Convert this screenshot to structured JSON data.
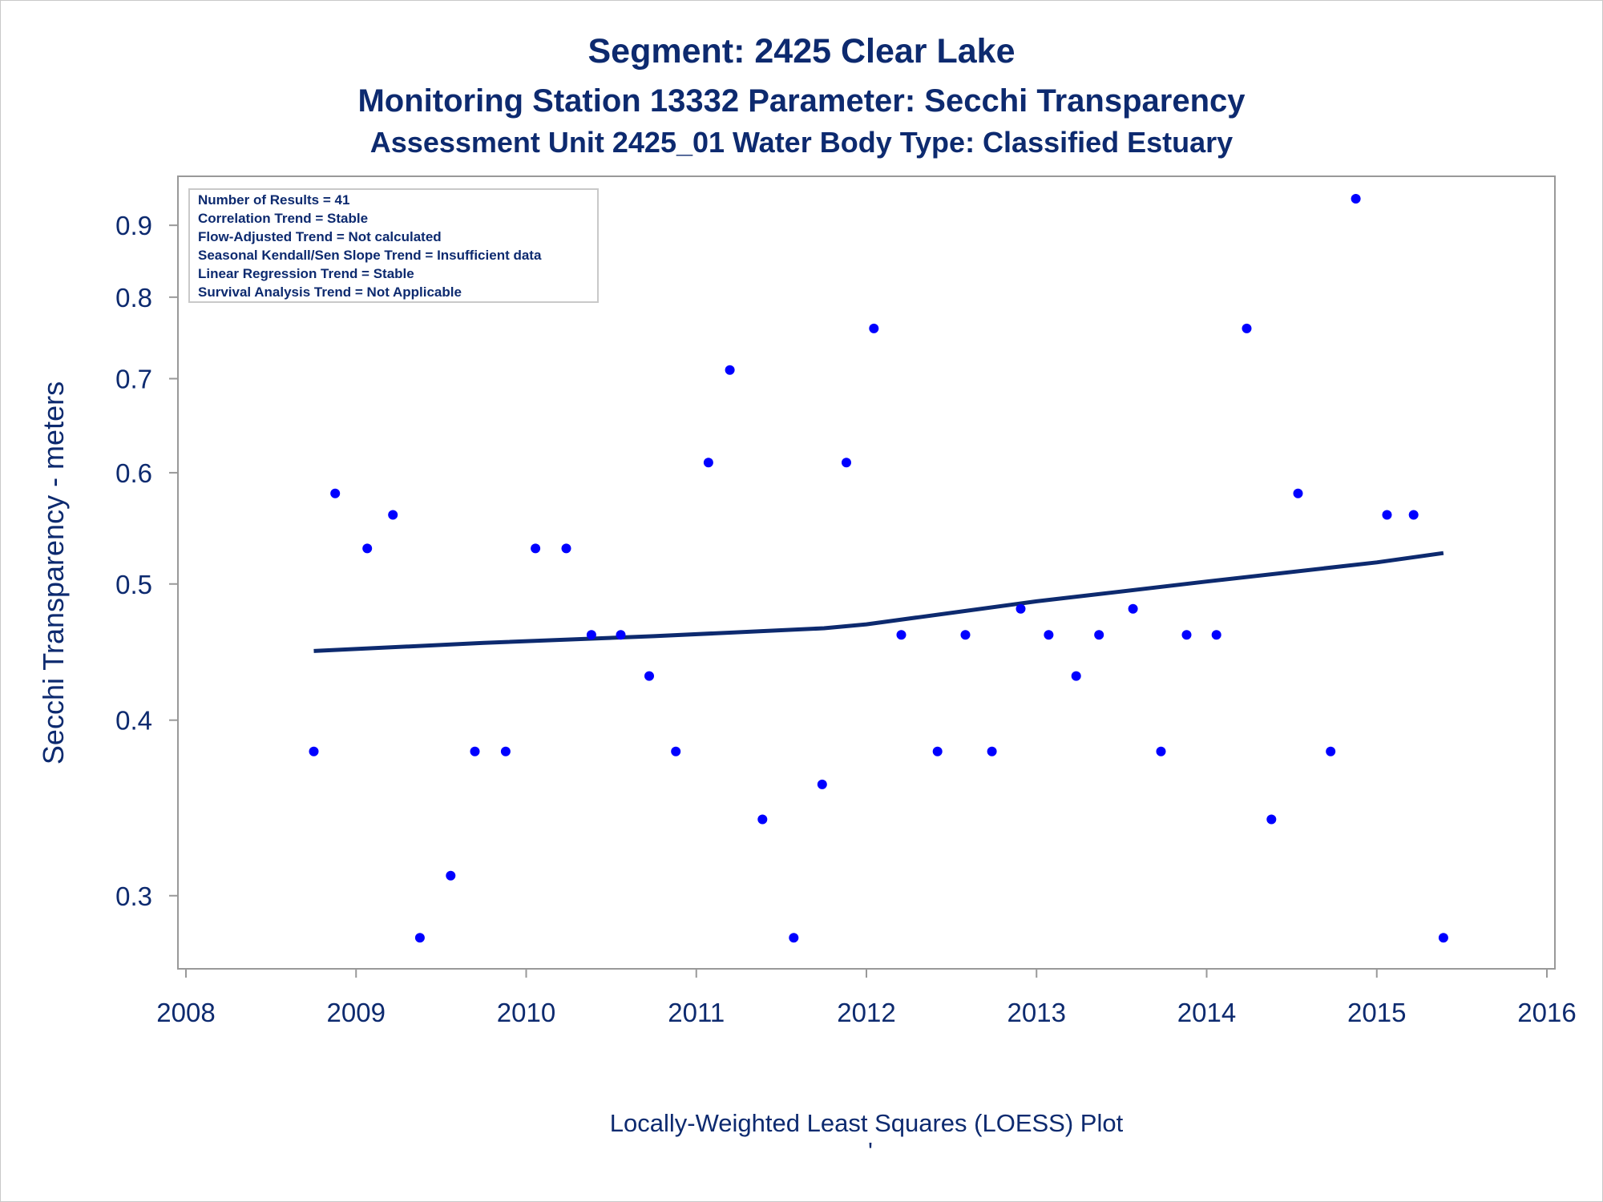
{
  "titles": {
    "line1": "Segment: 2425  Clear Lake",
    "line2": "Monitoring Station 13332 Parameter: Secchi Transparency",
    "line3": "Assessment Unit 2425_01   Water Body Type: Classified Estuary"
  },
  "inset": [
    "Number of Results = 41",
    "Correlation Trend = Stable",
    "Flow-Adjusted Trend = Not calculated",
    "Seasonal Kendall/Sen Slope Trend = Insufficient data",
    "Linear Regression Trend = Stable",
    "Survival Analysis Trend = Not Applicable"
  ],
  "footnote": {
    "line1": "Locally-Weighted Least Squares (LOESS) Plot",
    "line2": "'"
  },
  "colors": {
    "points": "#0000ff",
    "loess": "#0d2a6f",
    "text": "#0d2a6f",
    "axis": "#999999"
  },
  "chart_data": {
    "type": "scatter",
    "title": "Segment: 2425  Clear Lake",
    "xlabel": "",
    "ylabel": "Secchi Transparency - meters",
    "y_scale": "log",
    "xlim": [
      2008,
      2016
    ],
    "ylim": [
      0.27,
      0.96
    ],
    "x_ticks": [
      2008,
      2009,
      2010,
      2011,
      2012,
      2013,
      2014,
      2015,
      2016
    ],
    "y_ticks": [
      0.3,
      0.4,
      0.5,
      0.6,
      0.7,
      0.8,
      0.9
    ],
    "grid": false,
    "legend": "none",
    "series": [
      {
        "type": "scatter",
        "points": [
          {
            "x": "2008-10-02",
            "y": 0.38
          },
          {
            "x": "2008-11-17",
            "y": 0.58
          },
          {
            "x": "2009-01-25",
            "y": 0.53
          },
          {
            "x": "2009-03-21",
            "y": 0.56
          },
          {
            "x": "2009-05-18",
            "y": 0.28
          },
          {
            "x": "2009-07-23",
            "y": 0.31
          },
          {
            "x": "2009-09-13",
            "y": 0.38
          },
          {
            "x": "2009-11-18",
            "y": 0.38
          },
          {
            "x": "2010-01-21",
            "y": 0.53
          },
          {
            "x": "2010-03-28",
            "y": 0.53
          },
          {
            "x": "2010-05-21",
            "y": 0.46
          },
          {
            "x": "2010-07-23",
            "y": 0.46
          },
          {
            "x": "2010-09-22",
            "y": 0.43
          },
          {
            "x": "2010-11-18",
            "y": 0.38
          },
          {
            "x": "2011-01-27",
            "y": 0.61
          },
          {
            "x": "2011-03-14",
            "y": 0.71
          },
          {
            "x": "2011-05-23",
            "y": 0.34
          },
          {
            "x": "2011-07-29",
            "y": 0.28
          },
          {
            "x": "2011-09-28",
            "y": 0.36
          },
          {
            "x": "2011-11-19",
            "y": 0.61
          },
          {
            "x": "2012-01-17",
            "y": 0.76
          },
          {
            "x": "2012-03-16",
            "y": 0.46
          },
          {
            "x": "2012-06-02",
            "y": 0.38
          },
          {
            "x": "2012-08-01",
            "y": 0.46
          },
          {
            "x": "2012-09-27",
            "y": 0.38
          },
          {
            "x": "2012-11-28",
            "y": 0.48
          },
          {
            "x": "2013-01-27",
            "y": 0.46
          },
          {
            "x": "2013-03-27",
            "y": 0.43
          },
          {
            "x": "2013-05-15",
            "y": 0.46
          },
          {
            "x": "2013-07-27",
            "y": 0.48
          },
          {
            "x": "2013-09-25",
            "y": 0.38
          },
          {
            "x": "2013-11-19",
            "y": 0.46
          },
          {
            "x": "2014-01-22",
            "y": 0.46
          },
          {
            "x": "2014-03-28",
            "y": 0.76
          },
          {
            "x": "2014-05-20",
            "y": 0.34
          },
          {
            "x": "2014-07-16",
            "y": 0.58
          },
          {
            "x": "2014-09-24",
            "y": 0.38
          },
          {
            "x": "2014-11-17",
            "y": 0.94
          },
          {
            "x": "2015-01-23",
            "y": 0.56
          },
          {
            "x": "2015-03-21",
            "y": 0.56
          },
          {
            "x": "2015-05-24",
            "y": 0.28
          }
        ]
      },
      {
        "type": "line",
        "points": [
          {
            "x": "2008-10-02",
            "y": 0.448
          },
          {
            "x": "2009-10-02",
            "y": 0.454
          },
          {
            "x": "2010-10-02",
            "y": 0.459
          },
          {
            "x": "2011-10-02",
            "y": 0.465
          },
          {
            "x": "2012-01-01",
            "y": 0.468
          },
          {
            "x": "2013-01-01",
            "y": 0.486
          },
          {
            "x": "2014-01-01",
            "y": 0.502
          },
          {
            "x": "2015-01-01",
            "y": 0.518
          },
          {
            "x": "2015-05-24",
            "y": 0.526
          }
        ]
      }
    ]
  }
}
